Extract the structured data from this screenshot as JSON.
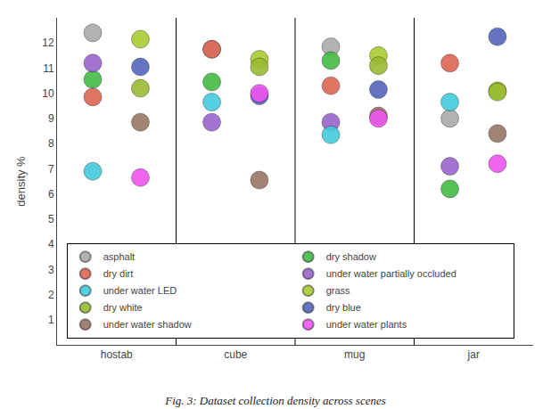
{
  "chart_data": {
    "type": "scatter",
    "title": "Fig. 3: Dataset collection density across scenes",
    "ylabel": "density %",
    "categories": [
      "hostab",
      "cube",
      "mug",
      "jar"
    ],
    "series": [
      {
        "name": "asphalt",
        "color": "#aaaaaa",
        "values": [
          12.4,
          11.75,
          11.85,
          9.0
        ]
      },
      {
        "name": "dry shadow",
        "color": "#44bb44",
        "values": [
          10.55,
          10.45,
          11.3,
          6.2
        ]
      },
      {
        "name": "dry dirt",
        "color": "#dd6655",
        "values": [
          9.85,
          11.75,
          10.3,
          11.2
        ]
      },
      {
        "name": "under water partially occluded",
        "color": "#9966cc",
        "values": [
          11.2,
          8.85,
          8.85,
          7.1
        ]
      },
      {
        "name": "under water LED",
        "color": "#44ccdd",
        "values": [
          6.9,
          9.65,
          8.35,
          9.65
        ]
      },
      {
        "name": "grass",
        "color": "#aacc33",
        "values": [
          12.15,
          11.35,
          11.5,
          10.1
        ]
      },
      {
        "name": "dry white",
        "color": "#99bb33",
        "values": [
          10.2,
          11.05,
          11.1,
          10.05
        ]
      },
      {
        "name": "dry blue",
        "color": "#5566bb",
        "values": [
          11.05,
          9.9,
          10.15,
          12.25
        ]
      },
      {
        "name": "under water shadow",
        "color": "#997766",
        "values": [
          8.85,
          6.55,
          9.1,
          8.4
        ]
      },
      {
        "name": "under water plants",
        "color": "#ee55ee",
        "values": [
          6.65,
          10.0,
          9.0,
          7.2
        ]
      }
    ],
    "ylim": [
      0,
      13
    ],
    "yticks": [
      1,
      2,
      3,
      4,
      5,
      6,
      7,
      8,
      9,
      10,
      11,
      12
    ],
    "grid": false,
    "legend": "lower left"
  }
}
